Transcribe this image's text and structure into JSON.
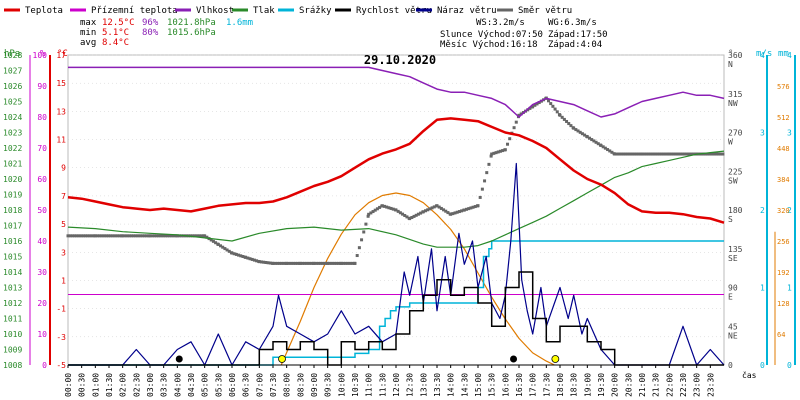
{
  "chart_data": {
    "type": "line",
    "title": "29.10.2020",
    "legend": [
      {
        "label": "Teplota",
        "color": "#e00000"
      },
      {
        "label": "Přízemní teplota",
        "color": "#cc00cc"
      },
      {
        "label": "Vlhkost",
        "color": "#8a1fb5"
      },
      {
        "label": "Tlak",
        "color": "#2a8a2a"
      },
      {
        "label": "Srážky",
        "color": "#00b4d8"
      },
      {
        "label": "Rychlost větru",
        "color": "#000000"
      },
      {
        "label": "Náraz větru",
        "color": "#00008b"
      },
      {
        "label": "Směr větru",
        "color": "#666666"
      }
    ],
    "stats": {
      "rows": [
        {
          "label": "max",
          "temp": "12.5°C",
          "hum": "96%",
          "press": "1021.8hPa",
          "rain": "1.6mm"
        },
        {
          "label": "min",
          "temp": "5.1°C",
          "hum": "80%",
          "press": "1015.6hPa",
          "rain": ""
        },
        {
          "label": "avg",
          "temp": "8.4°C",
          "hum": "",
          "press": "",
          "rain": ""
        }
      ],
      "wind_line": [
        "WS:3.2m/s",
        "WG:6.3m/s"
      ],
      "sun_line": [
        "Slunce Východ:07:50",
        "Západ:17:50"
      ],
      "moon_line": [
        "Měsíc Východ:16:18",
        "Západ:4:04"
      ]
    },
    "axes": {
      "hpa_unit": "hPa",
      "pct_unit": "%",
      "temp_unit": "°C",
      "hpa_ticks": [
        1008,
        1009,
        1010,
        1011,
        1012,
        1013,
        1014,
        1015,
        1016,
        1017,
        1018,
        1019,
        1020,
        1021,
        1022,
        1023,
        1024,
        1025,
        1026,
        1027,
        1028
      ],
      "pct_ticks": [
        0,
        10,
        20,
        30,
        40,
        50,
        60,
        70,
        80,
        90,
        100
      ],
      "temp_ticks": [
        -5,
        -3,
        -1,
        1,
        3,
        5,
        7,
        9,
        11,
        13,
        15,
        17
      ],
      "temp_ticks_inner": [
        -4,
        -2,
        0,
        2,
        4,
        6,
        8,
        10,
        12,
        14,
        16
      ],
      "dir_unit": "°",
      "dir_ticks": [
        {
          "deg": 0,
          "label": "0",
          "name": ""
        },
        {
          "deg": 45,
          "label": "45",
          "name": "NE"
        },
        {
          "deg": 90,
          "label": "90",
          "name": "E"
        },
        {
          "deg": 135,
          "label": "135",
          "name": "SE"
        },
        {
          "deg": 180,
          "label": "180",
          "name": "S"
        },
        {
          "deg": 225,
          "label": "225",
          "name": "SW"
        },
        {
          "deg": 270,
          "label": "270",
          "name": "W"
        },
        {
          "deg": 315,
          "label": "315",
          "name": "NW"
        },
        {
          "deg": 360,
          "label": "360",
          "name": "N"
        }
      ],
      "ms_unit": "m/s",
      "mm_unit": "mm",
      "ms_ticks": [
        0,
        1,
        2,
        3,
        4
      ],
      "mm_ticks": [
        0,
        1,
        2,
        3,
        4
      ],
      "solar_ticks": [
        64,
        128,
        192,
        256,
        320,
        384,
        448,
        512,
        576
      ],
      "solar_max": 640,
      "x_label": "čas",
      "x_ticks": [
        "00:00",
        "00:30",
        "01:00",
        "01:30",
        "02:00",
        "02:30",
        "03:00",
        "03:30",
        "04:00",
        "04:30",
        "05:00",
        "05:30",
        "06:00",
        "06:30",
        "07:00",
        "07:30",
        "08:00",
        "08:30",
        "09:00",
        "09:30",
        "10:00",
        "10:30",
        "11:00",
        "11:30",
        "12:00",
        "12:30",
        "13:00",
        "13:30",
        "14:00",
        "14:30",
        "15:00",
        "15:30",
        "16:00",
        "16:30",
        "17:00",
        "17:30",
        "18:00",
        "18:30",
        "19:00",
        "19:30",
        "20:00",
        "20:30",
        "21:00",
        "21:30",
        "22:00",
        "22:30",
        "23:00",
        "23:30"
      ]
    },
    "series": [
      {
        "name": "Teplota",
        "unit": "°C",
        "color": "#e00000",
        "x": [
          0,
          0.5,
          1,
          1.5,
          2,
          2.5,
          3,
          3.5,
          4,
          4.5,
          5,
          5.5,
          6,
          6.5,
          7,
          7.5,
          8,
          8.5,
          9,
          9.5,
          10,
          10.5,
          11,
          11.5,
          12,
          12.5,
          13,
          13.5,
          14,
          14.5,
          15,
          15.5,
          16,
          16.5,
          17,
          17.5,
          18,
          18.5,
          19,
          19.5,
          20,
          20.5,
          21,
          21.5,
          22,
          22.5,
          23,
          23.5,
          24
        ],
        "y": [
          6.9,
          6.8,
          6.6,
          6.4,
          6.2,
          6.1,
          6.0,
          6.1,
          6.0,
          5.9,
          6.1,
          6.3,
          6.4,
          6.5,
          6.5,
          6.6,
          6.9,
          7.3,
          7.7,
          8.0,
          8.4,
          9.0,
          9.6,
          10.0,
          10.3,
          10.7,
          11.6,
          12.4,
          12.5,
          12.4,
          12.3,
          11.9,
          11.5,
          11.3,
          10.9,
          10.4,
          9.6,
          8.8,
          8.2,
          7.8,
          7.2,
          6.4,
          5.9,
          5.8,
          5.8,
          5.7,
          5.5,
          5.4,
          5.1
        ]
      },
      {
        "name": "Přízemní teplota",
        "unit": "°C",
        "color": "#cc00cc",
        "x": [
          0,
          24
        ],
        "y": [
          0.0,
          0.0
        ]
      },
      {
        "name": "Vlhkost",
        "unit": "%",
        "color": "#8a1fb5",
        "x": [
          0,
          1,
          2,
          3,
          4,
          5,
          6,
          7,
          8,
          9,
          10,
          11,
          11.5,
          12,
          12.5,
          13,
          13.5,
          14,
          14.5,
          15,
          15.5,
          16,
          16.5,
          17,
          17.5,
          18,
          18.5,
          19,
          19.5,
          20,
          20.5,
          21,
          21.5,
          22,
          22.5,
          23,
          23.5,
          24
        ],
        "y": [
          96,
          96,
          96,
          96,
          96,
          96,
          96,
          96,
          96,
          96,
          96,
          96,
          95,
          94,
          93,
          91,
          89,
          88,
          88,
          87,
          86,
          84,
          80,
          84,
          86,
          85,
          84,
          82,
          80,
          81,
          83,
          85,
          86,
          87,
          88,
          87,
          87,
          86
        ]
      },
      {
        "name": "Tlak",
        "unit": "hPa",
        "color": "#2a8a2a",
        "x": [
          0,
          1,
          2,
          3,
          4,
          5,
          6,
          7,
          8,
          9,
          10,
          11,
          12,
          12.5,
          13,
          13.5,
          14,
          14.5,
          15,
          15.5,
          16,
          16.5,
          17,
          17.5,
          18,
          18.5,
          19,
          19.5,
          20,
          20.5,
          21,
          21.5,
          22,
          22.5,
          23,
          23.5,
          24
        ],
        "y": [
          1016.9,
          1016.8,
          1016.6,
          1016.5,
          1016.4,
          1016.2,
          1016.0,
          1016.5,
          1016.8,
          1016.9,
          1016.7,
          1016.8,
          1016.4,
          1016.1,
          1015.8,
          1015.6,
          1015.6,
          1015.6,
          1015.7,
          1016.0,
          1016.4,
          1016.8,
          1017.2,
          1017.6,
          1018.1,
          1018.6,
          1019.1,
          1019.6,
          1020.1,
          1020.4,
          1020.8,
          1021.0,
          1021.2,
          1021.4,
          1021.6,
          1021.7,
          1021.8
        ]
      },
      {
        "name": "Srážky",
        "unit": "mm",
        "color": "#00b4d8",
        "x": [
          0,
          7.0,
          7.5,
          8.5,
          10.5,
          11.0,
          11.4,
          11.6,
          11.8,
          12.0,
          12.5,
          13.0,
          13.5,
          14.0,
          14.5,
          14.9,
          15.0,
          15.2,
          15.4,
          15.5,
          16.0,
          17.0,
          18.0,
          19.0,
          20.0,
          21.0,
          22.0,
          23.0,
          24
        ],
        "y": [
          0,
          0,
          0.1,
          0.1,
          0.15,
          0.2,
          0.5,
          0.6,
          0.7,
          0.75,
          0.8,
          0.8,
          0.8,
          0.8,
          0.8,
          0.8,
          1.0,
          1.4,
          1.5,
          1.6,
          1.6,
          1.6,
          1.6,
          1.6,
          1.6,
          1.6,
          1.6,
          1.6,
          1.6
        ]
      },
      {
        "name": "Rychlost větru",
        "unit": "m/s",
        "color": "#000000",
        "x": [
          0,
          1,
          2,
          3,
          4,
          5,
          6,
          7,
          7.5,
          8,
          8.5,
          9,
          9.5,
          10,
          10.5,
          11,
          11.5,
          12,
          12.5,
          13,
          13.5,
          14,
          14.5,
          15,
          15.5,
          16,
          16.5,
          17,
          17.5,
          18,
          18.5,
          19,
          19.5,
          20,
          20.5,
          21,
          21.5,
          22,
          22.5,
          23,
          23.5,
          24
        ],
        "y": [
          0,
          0,
          0,
          0,
          0,
          0,
          0,
          0.2,
          0.3,
          0.2,
          0.3,
          0.2,
          0,
          0.3,
          0.2,
          0.3,
          0.2,
          0.4,
          0.7,
          0.9,
          1.1,
          0.9,
          1.0,
          0.8,
          0.5,
          1.0,
          1.2,
          0.6,
          0.3,
          0.5,
          0.5,
          0.3,
          0.2,
          0,
          0,
          0,
          0,
          0,
          0,
          0,
          0,
          0
        ]
      },
      {
        "name": "Náraz větru",
        "unit": "m/s",
        "color": "#00008b",
        "x": [
          0,
          1,
          2,
          2.5,
          3,
          3.5,
          4,
          4.5,
          5,
          5.5,
          6,
          6.5,
          7,
          7.5,
          7.7,
          8,
          8.5,
          9,
          9.5,
          10,
          10.5,
          11,
          11.5,
          12,
          12.3,
          12.5,
          12.8,
          13,
          13.3,
          13.5,
          13.8,
          14,
          14.3,
          14.5,
          14.8,
          15,
          15.3,
          15.5,
          15.8,
          16,
          16.2,
          16.4,
          16.6,
          16.8,
          17,
          17.3,
          17.5,
          17.8,
          18,
          18.3,
          18.5,
          18.8,
          19,
          19.5,
          20,
          20.5,
          21,
          21.5,
          22,
          22.5,
          23,
          23.5,
          24
        ],
        "y": [
          0,
          0,
          0,
          0.2,
          0,
          0,
          0.2,
          0.3,
          0,
          0.4,
          0,
          0.3,
          0.2,
          0.5,
          0.9,
          0.5,
          0.4,
          0.3,
          0.4,
          0.7,
          0.4,
          0.5,
          0.3,
          0.4,
          1.2,
          0.9,
          1.4,
          0.8,
          1.5,
          0.7,
          1.4,
          0.9,
          1.7,
          1.3,
          1.6,
          1.0,
          1.4,
          0.8,
          0.6,
          0.9,
          1.6,
          2.6,
          1.1,
          0.7,
          0.4,
          1.0,
          0.5,
          0.8,
          1.0,
          0.6,
          0.9,
          0.4,
          0.6,
          0.2,
          0,
          0,
          0,
          0,
          0,
          0.5,
          0,
          0.2,
          0
        ]
      },
      {
        "name": "Směr větru",
        "unit": "°",
        "color": "#666666",
        "x": [
          0,
          1,
          2,
          3,
          4,
          5,
          5.5,
          6,
          6.5,
          7,
          7.5,
          8,
          8.5,
          9,
          9.5,
          10,
          10.5,
          11,
          11.5,
          12,
          12.5,
          13,
          13.5,
          14,
          14.5,
          15,
          15.5,
          16,
          16.5,
          17,
          17.5,
          18,
          18.5,
          19,
          19.5,
          20,
          21,
          22,
          23,
          24
        ],
        "y": [
          150,
          150,
          150,
          150,
          150,
          150,
          140,
          130,
          125,
          120,
          118,
          118,
          118,
          118,
          118,
          118,
          118,
          175,
          185,
          180,
          170,
          178,
          185,
          175,
          180,
          185,
          245,
          250,
          290,
          300,
          310,
          290,
          275,
          265,
          255,
          245,
          245,
          245,
          245,
          245
        ]
      }
    ],
    "solar_curve": {
      "name": "Sluneční záření",
      "unit": "W/m²",
      "color": "#e07b00",
      "x": [
        7.8,
        8.5,
        9,
        9.5,
        10,
        10.5,
        11,
        11.5,
        12,
        12.5,
        13,
        13.5,
        14,
        14.5,
        15,
        15.5,
        16,
        16.5,
        17,
        17.5,
        17.8
      ],
      "y": [
        0,
        90,
        160,
        220,
        270,
        310,
        335,
        350,
        355,
        350,
        335,
        310,
        280,
        240,
        190,
        140,
        95,
        55,
        25,
        8,
        0
      ]
    },
    "markers": {
      "moon_set": 4.07,
      "sun_rise": 7.83,
      "moon_rise": 16.3,
      "sun_set": 17.83
    }
  }
}
